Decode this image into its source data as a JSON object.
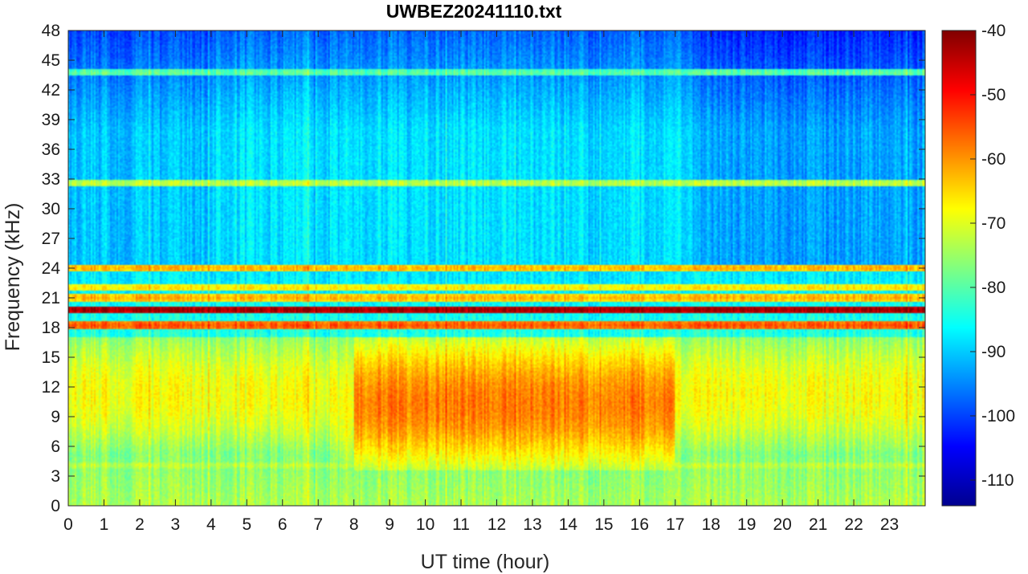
{
  "chart_data": {
    "type": "heatmap",
    "title": "UWBEZ20241110.txt",
    "xlabel": "UT time (hour)",
    "ylabel": "Frequency (kHz)",
    "xlim": [
      0,
      24
    ],
    "ylim": [
      0,
      48
    ],
    "x_ticks": [
      0,
      1,
      2,
      3,
      4,
      5,
      6,
      7,
      8,
      9,
      10,
      11,
      12,
      13,
      14,
      15,
      16,
      17,
      18,
      19,
      20,
      21,
      22,
      23
    ],
    "y_ticks": [
      0,
      3,
      6,
      9,
      12,
      15,
      18,
      21,
      24,
      27,
      30,
      33,
      36,
      39,
      42,
      45,
      48
    ],
    "colorbar": {
      "colormap": "jet",
      "range": [
        -114,
        -40
      ],
      "ticks": [
        -110,
        -100,
        -90,
        -80,
        -70,
        -60,
        -50,
        -40
      ],
      "colors": [
        "#00008f",
        "#0000ff",
        "#0080ff",
        "#00ffff",
        "#80ff80",
        "#ffff00",
        "#ff8000",
        "#ff0000",
        "#800000"
      ]
    },
    "features": {
      "strong_lines_khz": [
        {
          "freq": 19.8,
          "level": -42
        },
        {
          "freq": 18.2,
          "level": -55
        }
      ],
      "moderate_lines_khz": [
        {
          "freq": 24.0,
          "level": -62
        },
        {
          "freq": 21.0,
          "level": -62
        },
        {
          "freq": 22.0,
          "level": -66
        }
      ],
      "weak_lines_khz": [
        {
          "freq": 32.6,
          "level": -72
        },
        {
          "freq": 43.8,
          "level": -79
        },
        {
          "freq": 4.0,
          "level": -72
        },
        {
          "freq": 2.5,
          "level": -76
        }
      ],
      "vlf_band_khz": [
        3.5,
        17
      ],
      "vlf_band_peak_hours": [
        8,
        17
      ],
      "vlf_band_peak_level": -58,
      "background_level_high_freq": -88
    }
  }
}
